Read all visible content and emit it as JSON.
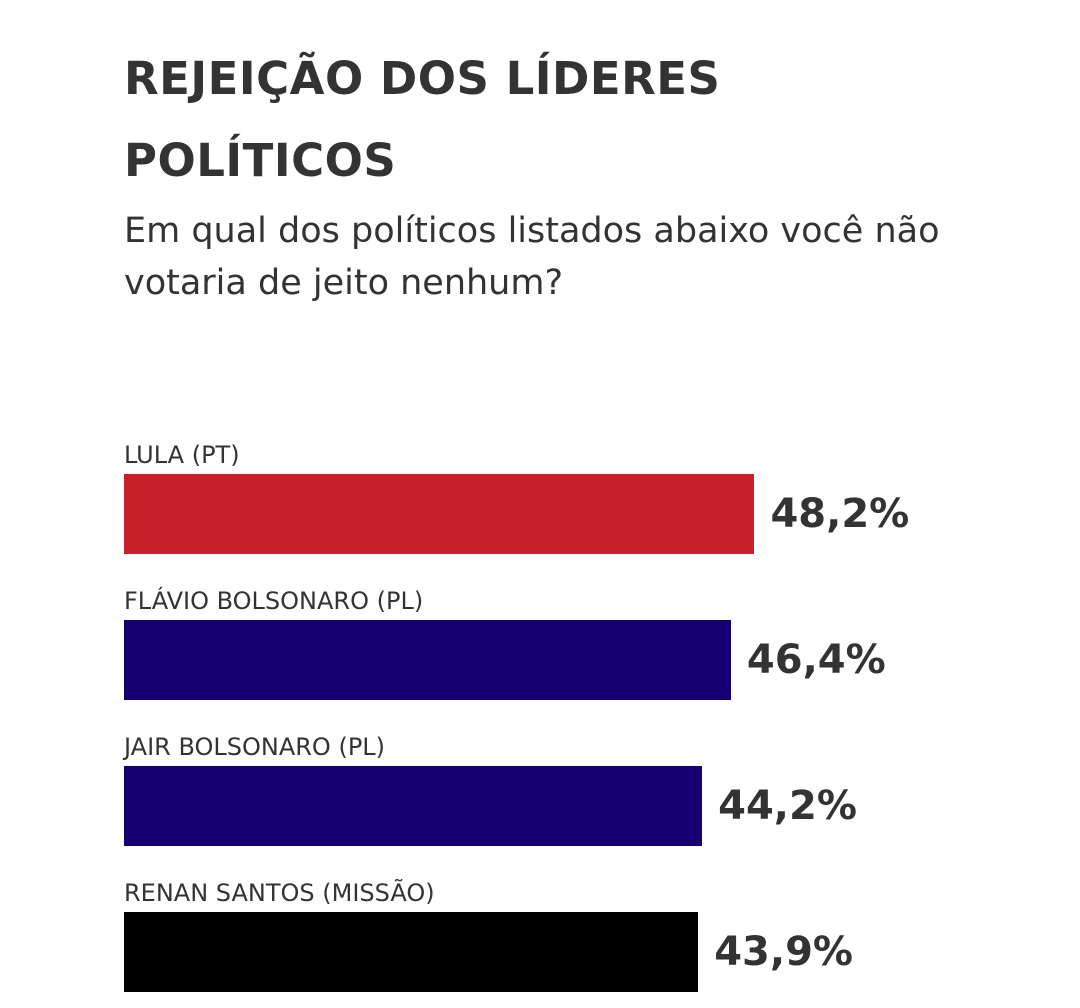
{
  "chart_data": {
    "type": "bar",
    "orientation": "horizontal",
    "title": "REJEIÇÃO DOS LÍDERES POLÍTICOS",
    "subtitle": "Em qual dos políticos listados abaixo você não votaria de jeito nenhum?",
    "categories": [
      "LULA (PT)",
      "FLÁVIO BOLSONARO (PL)",
      "JAIR BOLSONARO (PL)",
      "RENAN SANTOS (MISSÃO)"
    ],
    "values": [
      48.2,
      46.4,
      44.2,
      43.9
    ],
    "value_labels": [
      "48,2%",
      "46,4%",
      "44,2%",
      "43,9%"
    ],
    "colors": [
      "#c8202a",
      "#140070",
      "#140070",
      "#000000"
    ],
    "grid": false,
    "legend": "none"
  }
}
